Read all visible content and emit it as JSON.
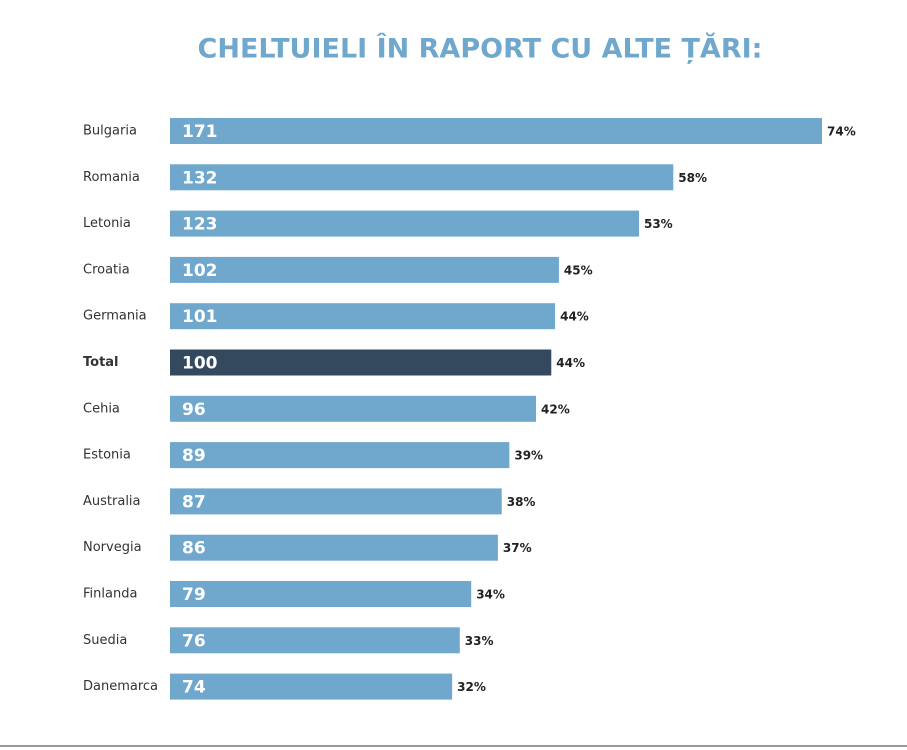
{
  "chart_data": {
    "type": "bar",
    "orientation": "horizontal",
    "title": "CHELTUIELI ÎN RAPORT CU ALTE ȚĂRI:",
    "categories": [
      "Bulgaria",
      "Romania",
      "Letonia",
      "Croatia",
      "Germania",
      "Total",
      "Cehia",
      "Estonia",
      "Australia",
      "Norvegia",
      "Finlanda",
      "Suedia",
      "Danemarca"
    ],
    "emphasis": [
      false,
      false,
      false,
      false,
      false,
      true,
      false,
      false,
      false,
      false,
      false,
      false,
      false
    ],
    "series": [
      {
        "values": [
          171,
          132,
          123,
          102,
          101,
          100,
          96,
          89,
          87,
          86,
          79,
          76,
          74
        ],
        "colors": [
          "#6fa8cc",
          "#6fa8cc",
          "#6fa8cc",
          "#6fa8cc",
          "#6fa8cc",
          "#34495e",
          "#6fa8cc",
          "#6fa8cc",
          "#6fa8cc",
          "#6fa8cc",
          "#6fa8cc",
          "#6fa8cc",
          "#6fa8cc"
        ]
      },
      {
        "values": [
          74,
          58,
          53,
          45,
          44,
          44,
          42,
          39,
          38,
          37,
          34,
          33,
          32
        ],
        "value_labels": [
          "74%",
          "58%",
          "53%",
          "45%",
          "44%",
          "44%",
          "42%",
          "39%",
          "38%",
          "37%",
          "34%",
          "33%",
          "32%"
        ]
      }
    ]
  }
}
